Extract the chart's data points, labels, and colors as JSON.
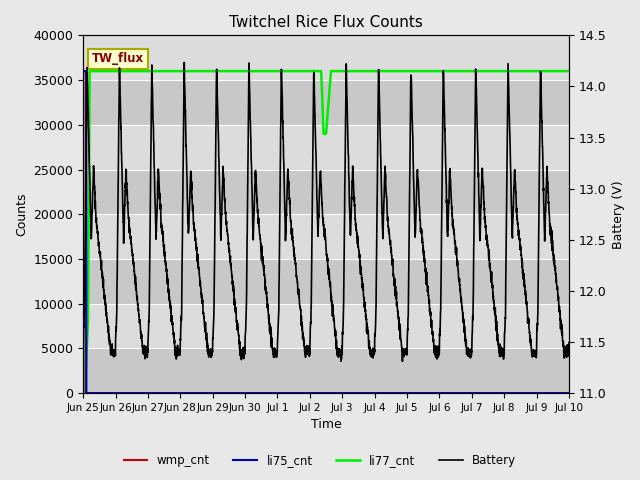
{
  "title": "Twitchel Rice Flux Counts",
  "xlabel": "Time",
  "ylabel_left": "Counts",
  "ylabel_right": "Battery (V)",
  "ylim_left": [
    0,
    40000
  ],
  "ylim_right": [
    11.0,
    14.5
  ],
  "yticks_left": [
    0,
    5000,
    10000,
    15000,
    20000,
    25000,
    30000,
    35000,
    40000
  ],
  "yticks_right": [
    11.0,
    11.5,
    12.0,
    12.5,
    13.0,
    13.5,
    14.0,
    14.5
  ],
  "fig_bg_color": "#e8e8e8",
  "plot_bg_color": "#dcdcdc",
  "band_colors": [
    "#c8c8c8",
    "#dcdcdc"
  ],
  "legend_items": [
    {
      "label": "wmp_cnt",
      "color": "#cc0000",
      "lw": 1.5
    },
    {
      "label": "li75_cnt",
      "color": "#0000cc",
      "lw": 1.5
    },
    {
      "label": "li77_cnt",
      "color": "#00ee00",
      "lw": 1.8
    },
    {
      "label": "Battery",
      "color": "#000000",
      "lw": 1.2
    }
  ],
  "annotation_text": "TW_flux",
  "tick_labels": [
    "Jun 25",
    "Jun 26",
    "Jun 27",
    "Jun 28",
    "Jun 29",
    "Jun 30",
    "Jul 1",
    "Jul 2",
    "Jul 3",
    "Jul 4",
    "Jul 5",
    "Jul 6",
    "Jul 7",
    "Jul 8",
    "Jul 9",
    "Jul 10"
  ],
  "tick_fontsize": 7.5,
  "title_fontsize": 11,
  "axis_fontsize": 9
}
